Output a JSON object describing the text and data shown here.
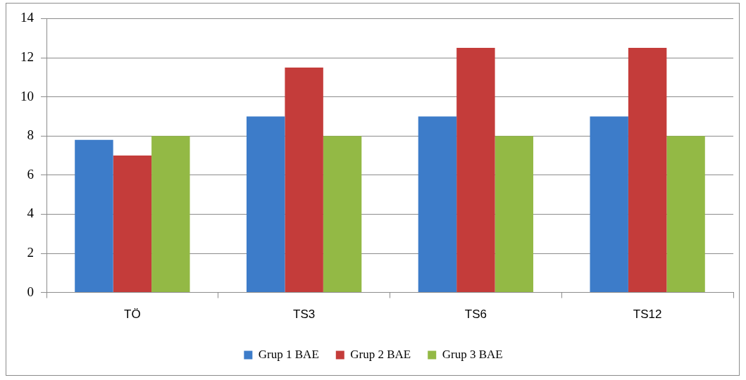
{
  "chart_data": {
    "type": "bar",
    "categories": [
      "TÖ",
      "TS3",
      "TS6",
      "TS12"
    ],
    "series": [
      {
        "name": "Grup 1 BAE",
        "color": "#3d7cc9",
        "values": [
          7.8,
          9,
          9,
          9
        ]
      },
      {
        "name": "Grup 2 BAE",
        "color": "#c43c3a",
        "values": [
          7,
          11.5,
          12.5,
          12.5
        ]
      },
      {
        "name": "Grup 3 BAE",
        "color": "#93b945",
        "values": [
          8,
          8,
          8,
          8
        ]
      }
    ],
    "ylim": [
      0,
      14
    ],
    "yticks": [
      0,
      2,
      4,
      6,
      8,
      10,
      12,
      14
    ],
    "grid": "y",
    "legend": "bottom"
  }
}
